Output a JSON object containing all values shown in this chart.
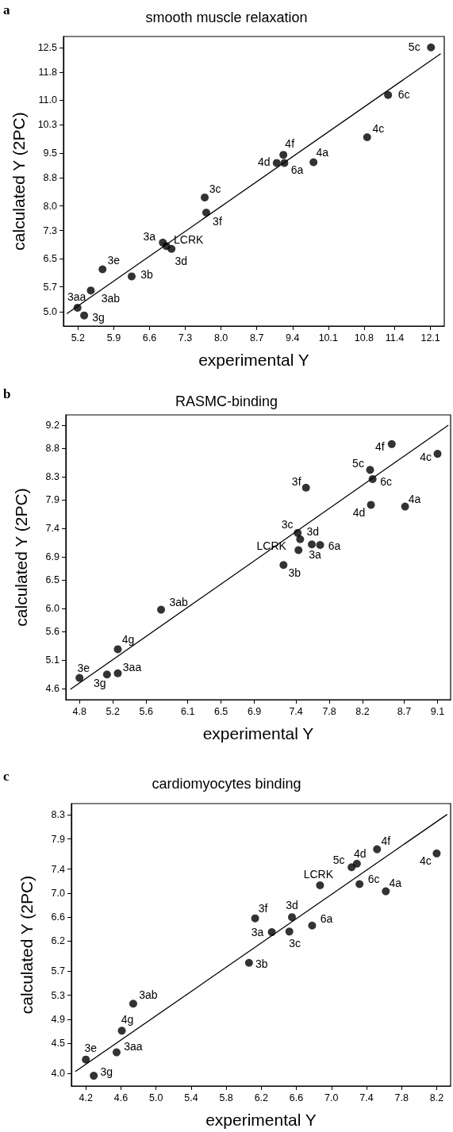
{
  "chart_data": [
    {
      "type": "scatter",
      "title": "smooth muscle relaxation",
      "xlabel": "experimental Y",
      "ylabel": "calculated Y (2PC)",
      "annotations": [
        "a",
        {
          "text": "5c",
          "x": 12.11,
          "y": 12.5
        },
        {
          "text": "6c",
          "x": 11.27,
          "y": 11.15
        },
        {
          "text": "4c",
          "x": 10.86,
          "y": 9.95
        },
        {
          "text": "4f",
          "x": 9.22,
          "y": 9.45
        },
        {
          "text": "4d",
          "x": 9.09,
          "y": 9.22
        },
        {
          "text": "6a",
          "x": 9.24,
          "y": 9.22
        },
        {
          "text": "4a",
          "x": 9.81,
          "y": 9.24
        },
        {
          "text": "3c",
          "x": 7.68,
          "y": 8.24
        },
        {
          "text": "3f",
          "x": 7.71,
          "y": 7.81
        },
        {
          "text": "3a",
          "x": 6.86,
          "y": 6.96
        },
        {
          "text": "LCRK",
          "x": 6.93,
          "y": 6.86
        },
        {
          "text": "3d",
          "x": 7.03,
          "y": 6.78
        },
        {
          "text": "3e",
          "x": 5.68,
          "y": 6.2
        },
        {
          "text": "3b",
          "x": 6.25,
          "y": 6.0
        },
        {
          "text": "3ab",
          "x": 5.45,
          "y": 5.6
        },
        {
          "text": "3aa",
          "x": 5.19,
          "y": 5.11
        },
        {
          "text": "3g",
          "x": 5.32,
          "y": 4.89
        }
      ],
      "series": [
        {
          "color": "#000000",
          "marker": "circle",
          "x": [
            12.11,
            11.27,
            10.86,
            9.22,
            9.09,
            9.24,
            9.81,
            7.68,
            7.71,
            6.86,
            6.93,
            7.03,
            5.68,
            6.25,
            5.45,
            5.19,
            5.32
          ],
          "values": [
            12.5,
            11.15,
            9.95,
            9.45,
            9.22,
            9.22,
            9.24,
            8.24,
            7.81,
            6.96,
            6.86,
            6.78,
            6.2,
            6.0,
            5.6,
            5.11,
            4.89
          ]
        },
        {
          "type": "line",
          "color": "#000000",
          "marker": "none",
          "line_style": "solid",
          "x": [
            4.98,
            12.3
          ],
          "values": [
            4.94,
            12.32
          ]
        }
      ],
      "xlim": [
        4.915,
        12.37
      ],
      "ylim": [
        4.59,
        12.81
      ],
      "xticks": [
        5.2,
        5.9,
        6.6,
        7.3,
        {
          "value": 8.0,
          "label": "8.0"
        },
        8.7,
        9.4,
        10.1,
        10.8,
        11.4,
        12.1
      ],
      "yticks": [
        {
          "value": 5.0,
          "label": "5.0"
        },
        5.7,
        6.5,
        7.3,
        {
          "value": 8.0,
          "label": "8.0"
        },
        8.8,
        9.5,
        10.3,
        {
          "value": 11.0,
          "label": "11.0"
        },
        11.8,
        12.5
      ]
    },
    {
      "type": "scatter",
      "title": "RASMC-binding",
      "xlabel": "experimental Y",
      "ylabel": "calculated Y (2PC)",
      "annotations": [
        "b",
        {
          "text": "4f",
          "x": 8.55,
          "y": 8.87
        },
        {
          "text": "4c",
          "x": 9.1,
          "y": 8.7
        },
        {
          "text": "5c",
          "x": 8.29,
          "y": 8.42
        },
        {
          "text": "6c",
          "x": 8.32,
          "y": 8.26
        },
        {
          "text": "3f",
          "x": 7.52,
          "y": 8.11
        },
        {
          "text": "4d",
          "x": 8.3,
          "y": 7.81
        },
        {
          "text": "4a",
          "x": 8.71,
          "y": 7.78
        },
        {
          "text": "3c",
          "x": 7.42,
          "y": 7.32
        },
        {
          "text": "3d",
          "x": 7.45,
          "y": 7.21
        },
        {
          "text": "3a",
          "x": 7.59,
          "y": 7.12
        },
        {
          "text": "6a",
          "x": 7.69,
          "y": 7.11
        },
        {
          "text": "LCRK",
          "x": 7.43,
          "y": 7.02
        },
        {
          "text": "3b",
          "x": 7.25,
          "y": 6.76
        },
        {
          "text": "3ab",
          "x": 5.78,
          "y": 5.98
        },
        {
          "text": "4g",
          "x": 5.26,
          "y": 5.29
        },
        {
          "text": "3aa",
          "x": 5.26,
          "y": 4.87
        },
        {
          "text": "3g",
          "x": 5.13,
          "y": 4.85
        },
        {
          "text": "3e",
          "x": 4.8,
          "y": 4.79
        }
      ],
      "series": [
        {
          "color": "#000000",
          "marker": "circle",
          "x": [
            8.55,
            9.1,
            8.29,
            8.32,
            7.52,
            8.3,
            8.71,
            7.42,
            7.45,
            7.59,
            7.69,
            7.43,
            7.25,
            5.78,
            5.26,
            5.26,
            5.13,
            4.8
          ],
          "values": [
            8.87,
            8.7,
            8.42,
            8.26,
            8.11,
            7.81,
            7.78,
            7.32,
            7.21,
            7.12,
            7.11,
            7.02,
            6.76,
            5.98,
            5.29,
            4.87,
            4.85,
            4.79
          ]
        },
        {
          "type": "line",
          "color": "#000000",
          "marker": "none",
          "line_style": "solid",
          "x": [
            4.69,
            9.23
          ],
          "values": [
            4.59,
            9.2
          ]
        }
      ],
      "xlim": [
        4.636,
        9.257
      ],
      "ylim": [
        4.41,
        9.38
      ],
      "xticks": [
        4.8,
        5.2,
        5.6,
        6.1,
        6.5,
        6.9,
        7.4,
        7.8,
        8.2,
        8.7,
        9.1
      ],
      "yticks": [
        4.6,
        5.1,
        5.6,
        {
          "value": 6.0,
          "label": "6.0"
        },
        6.5,
        6.9,
        7.4,
        7.9,
        8.3,
        8.8,
        9.2
      ]
    },
    {
      "type": "scatter",
      "title": "cardiomyocytes binding",
      "xlabel": "experimental Y",
      "ylabel": "calculated Y (2PC)",
      "annotations": [
        "c",
        {
          "text": "4f",
          "x": 7.52,
          "y": 7.73
        },
        {
          "text": "4c",
          "x": 8.2,
          "y": 7.66
        },
        {
          "text": "4d",
          "x": 7.29,
          "y": 7.49
        },
        {
          "text": "5c",
          "x": 7.23,
          "y": 7.43
        },
        {
          "text": "LCRK",
          "x": 6.87,
          "y": 7.13
        },
        {
          "text": "6c",
          "x": 7.32,
          "y": 7.15
        },
        {
          "text": "4a",
          "x": 7.62,
          "y": 7.03
        },
        {
          "text": "3f",
          "x": 6.13,
          "y": 6.58
        },
        {
          "text": "3d",
          "x": 6.55,
          "y": 6.6
        },
        {
          "text": "3a",
          "x": 6.32,
          "y": 6.35
        },
        {
          "text": "3c",
          "x": 6.52,
          "y": 6.36
        },
        {
          "text": "6a",
          "x": 6.78,
          "y": 6.46
        },
        {
          "text": "3b",
          "x": 6.06,
          "y": 5.84
        },
        {
          "text": "3ab",
          "x": 4.74,
          "y": 5.16
        },
        {
          "text": "4g",
          "x": 4.61,
          "y": 4.71
        },
        {
          "text": "3aa",
          "x": 4.55,
          "y": 4.35
        },
        {
          "text": "3e",
          "x": 4.2,
          "y": 4.23
        },
        {
          "text": "3g",
          "x": 4.29,
          "y": 3.96
        }
      ],
      "series": [
        {
          "color": "#000000",
          "marker": "circle",
          "x": [
            7.52,
            8.2,
            7.29,
            7.23,
            6.87,
            7.32,
            7.62,
            6.13,
            6.55,
            6.32,
            6.52,
            6.78,
            6.06,
            4.74,
            4.61,
            4.55,
            4.2,
            4.29
          ],
          "values": [
            7.73,
            7.66,
            7.49,
            7.43,
            7.13,
            7.15,
            7.03,
            6.58,
            6.6,
            6.35,
            6.36,
            6.46,
            5.84,
            5.16,
            4.71,
            4.35,
            4.23,
            3.96
          ]
        },
        {
          "type": "line",
          "color": "#000000",
          "marker": "none",
          "line_style": "solid",
          "x": [
            4.08,
            8.32
          ],
          "values": [
            4.03,
            8.31
          ]
        }
      ],
      "xlim": [
        4.035,
        8.359
      ],
      "ylim": [
        3.79,
        8.49
      ],
      "xticks": [
        4.2,
        4.6,
        {
          "value": 5.0,
          "label": "5.0"
        },
        5.4,
        5.8,
        6.2,
        6.6,
        {
          "value": 7.0,
          "label": "7.0"
        },
        7.4,
        7.8,
        8.2
      ],
      "yticks": [
        {
          "value": 4.0,
          "label": "4.0"
        },
        4.5,
        4.9,
        5.3,
        5.7,
        6.2,
        6.6,
        {
          "value": 7.0,
          "label": "7.0"
        },
        7.4,
        7.9,
        8.3
      ]
    }
  ]
}
